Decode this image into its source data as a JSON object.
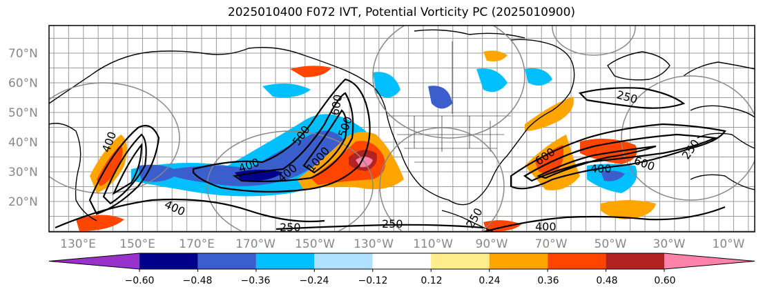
{
  "title": "2025010400 F072 IVT, Potential Vorticity PC (2025010900)",
  "lat_labels": [
    "70°N",
    "60°N",
    "50°N",
    "40°N",
    "30°N",
    "20°N"
  ],
  "lon_labels": [
    "130°E",
    "150°E",
    "170°E",
    "170°W",
    "150°W",
    "130°W",
    "110°W",
    "90°W",
    "70°W",
    "50°W",
    "30°W",
    "10°W"
  ],
  "colorbar": {
    "colors": [
      "#9932cc",
      "#00008b",
      "#3a5fcd",
      "#00bfff",
      "#b0e2ff",
      "#ffffff",
      "#ffec8b",
      "#ffa500",
      "#ff4500",
      "#b22222",
      "#ff82ab"
    ],
    "tick_labels": [
      "−0.60",
      "−0.48",
      "−0.36",
      "−0.24",
      "−0.12",
      "0.12",
      "0.24",
      "0.36",
      "0.48",
      "0.60"
    ]
  },
  "contour_labels": [
    "400",
    "400",
    "400",
    "400",
    "500",
    "500",
    "600",
    "600",
    "1000",
    "250",
    "250",
    "250",
    "250",
    "250",
    "400",
    "400",
    "600"
  ]
}
